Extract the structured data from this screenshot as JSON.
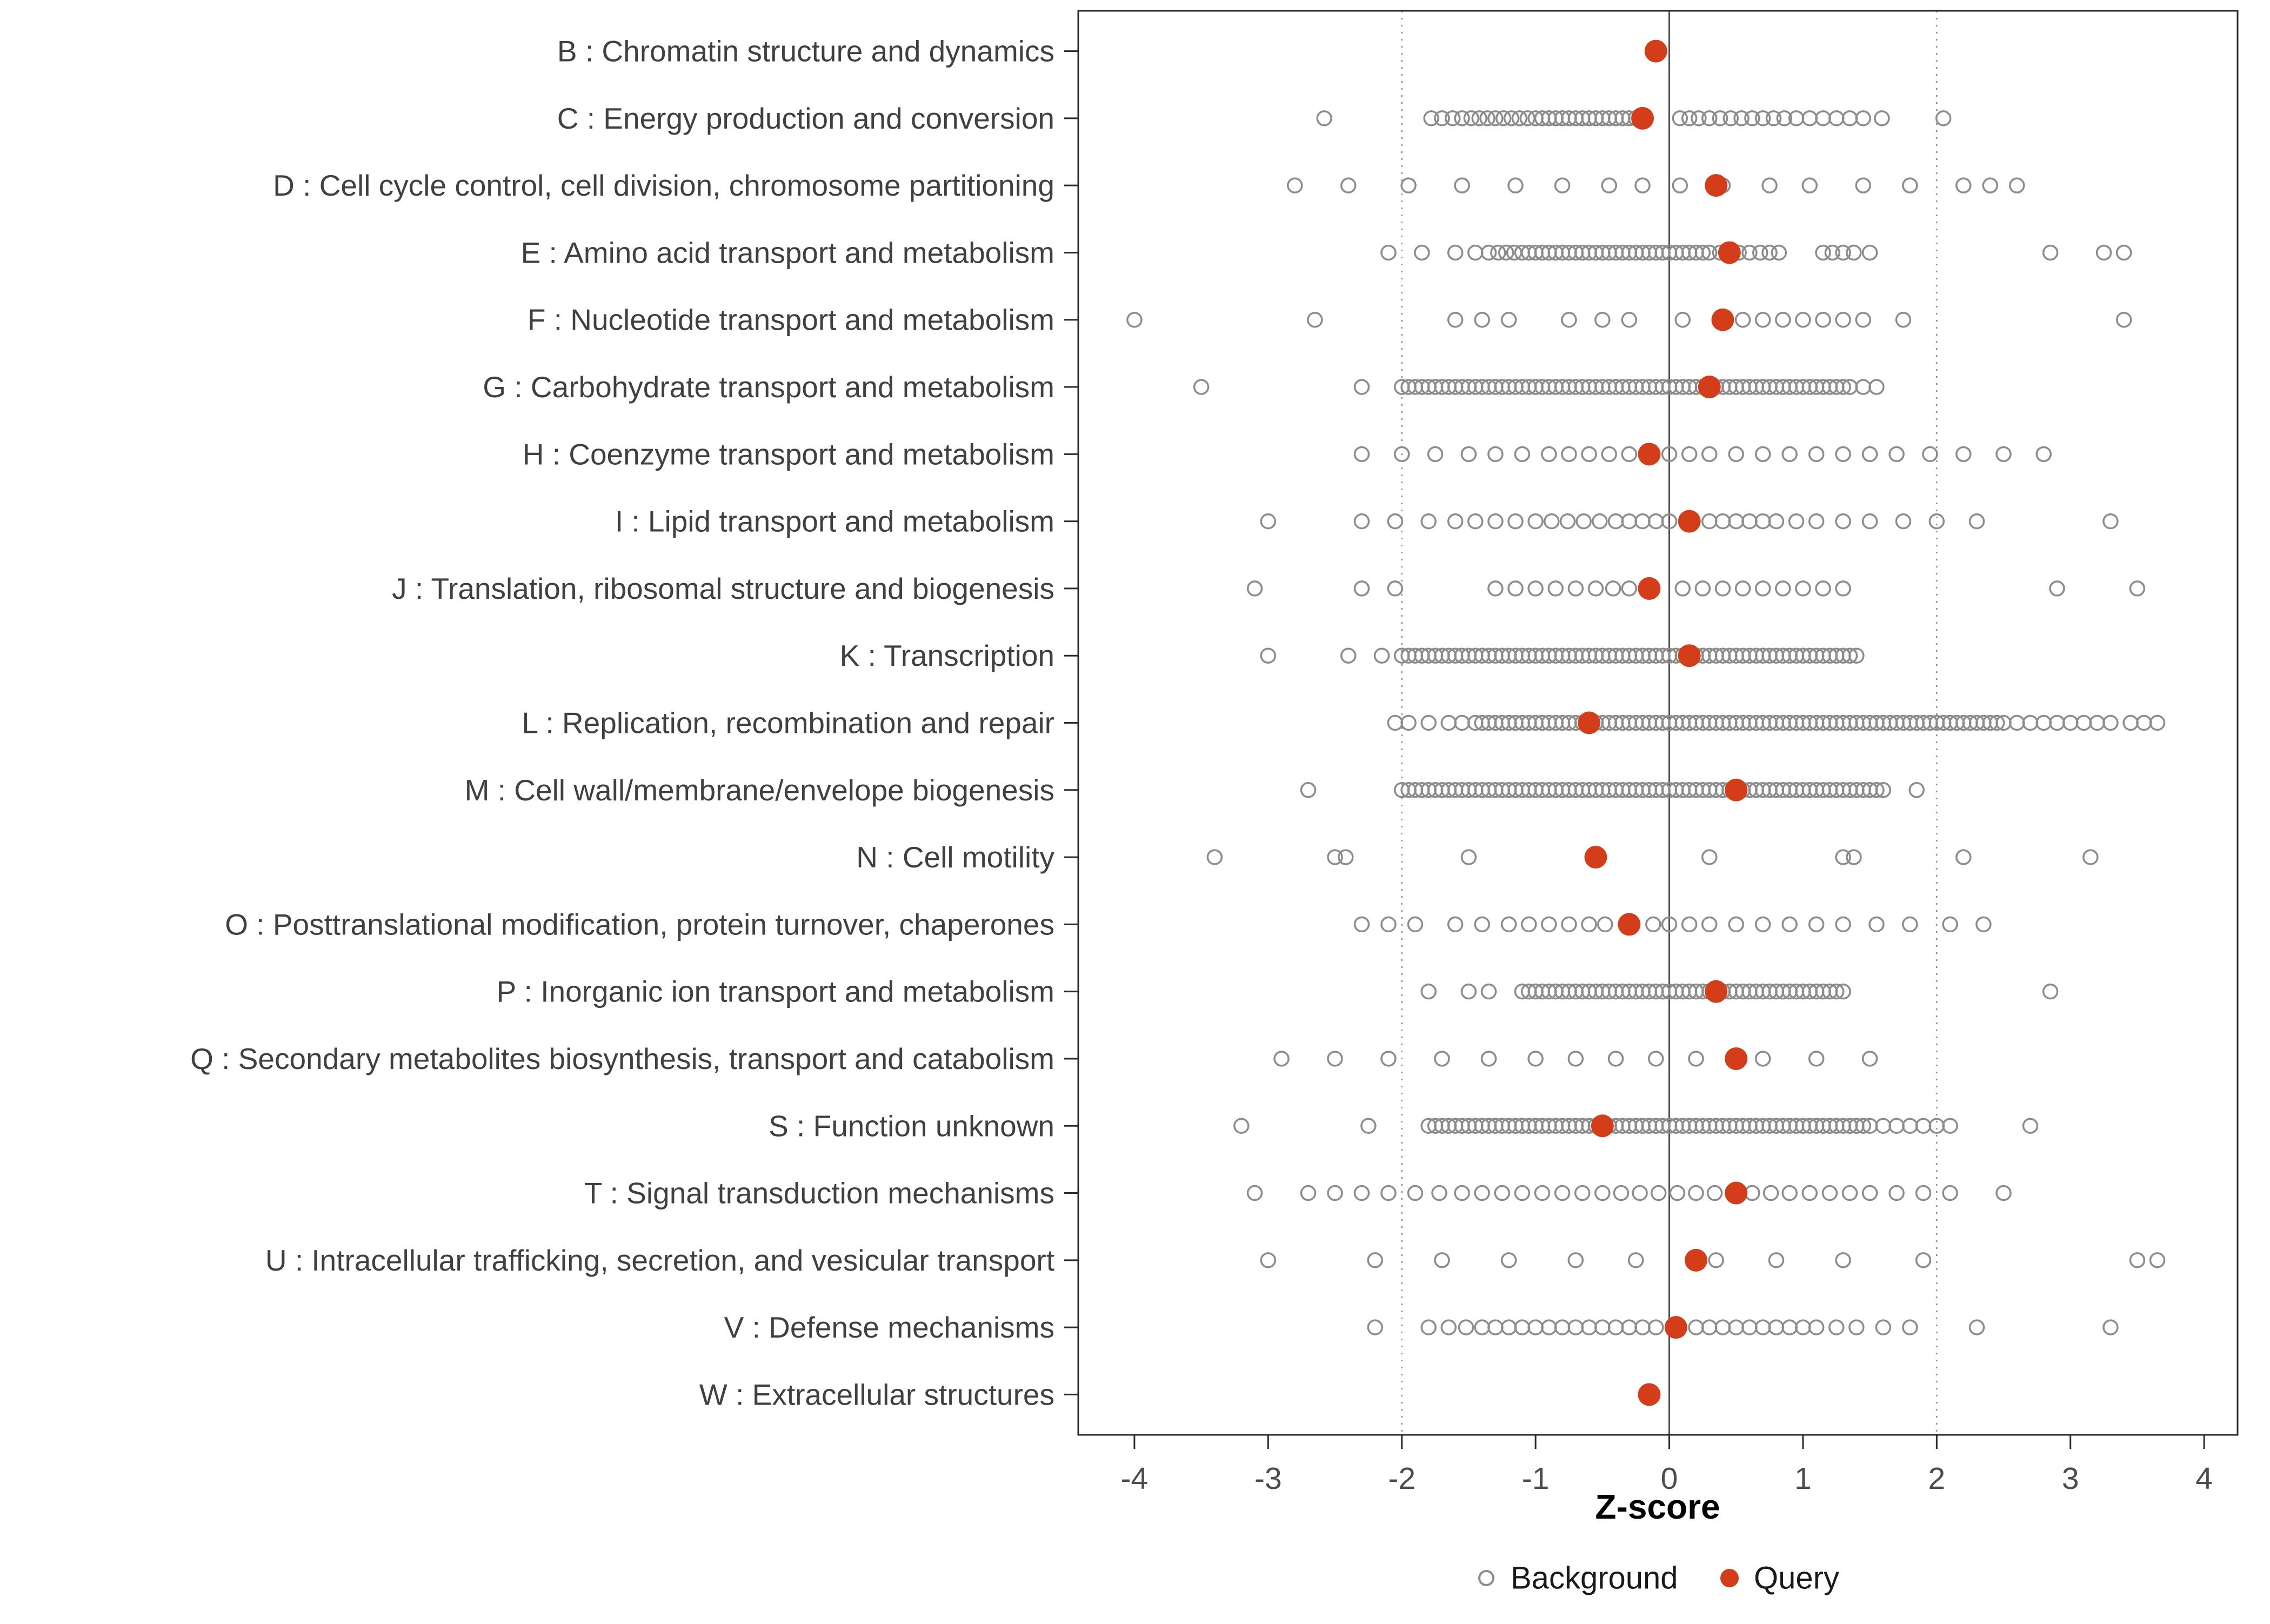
{
  "chart_data": {
    "type": "scatter",
    "variant": "strip-dotplot-by-category",
    "title": "",
    "xlabel": "Z-score",
    "xlim": [
      -4.42,
      4.25
    ],
    "x_ticks": [
      -4,
      -3,
      -2,
      -1,
      0,
      1,
      2,
      3,
      4
    ],
    "reference_lines": {
      "solid": [
        0
      ],
      "dotted": [
        -2,
        2
      ]
    },
    "grid": false,
    "legend_position": "bottom",
    "legend": [
      {
        "label": "Background",
        "marker": "open-circle",
        "color": "#8c8c8c"
      },
      {
        "label": "Query",
        "marker": "filled-circle",
        "color": "#d43d1a"
      }
    ],
    "colors": {
      "background_stroke": "#8c8c8c",
      "query_fill": "#d43d1a",
      "axis_text": "#4d4d4d",
      "panel_border": "#2b2b2b",
      "zero_line": "#4d4d4d",
      "dotted_line": "#8c8c8c"
    },
    "categories": [
      {
        "label": "B : Chromatin structure and dynamics",
        "query": -0.1,
        "background": []
      },
      {
        "label": "C : Energy production and conversion",
        "query": -0.2,
        "background": [
          -2.58,
          -1.78,
          -1.7,
          -1.62,
          -1.55,
          -1.48,
          -1.42,
          -1.36,
          -1.3,
          -1.24,
          -1.18,
          -1.12,
          -1.06,
          -1.0,
          -0.95,
          -0.9,
          -0.85,
          -0.8,
          -0.75,
          -0.7,
          -0.65,
          -0.6,
          -0.55,
          -0.5,
          -0.45,
          -0.4,
          -0.35,
          -0.3,
          -0.25,
          0.08,
          0.15,
          0.22,
          0.3,
          0.38,
          0.46,
          0.54,
          0.62,
          0.7,
          0.78,
          0.86,
          0.95,
          1.05,
          1.15,
          1.25,
          1.35,
          1.45,
          1.59,
          2.05
        ]
      },
      {
        "label": "D : Cell cycle control, cell division, chromosome partitioning",
        "query": 0.35,
        "background": [
          -2.8,
          -2.4,
          -1.95,
          -1.55,
          -1.15,
          -0.8,
          -0.45,
          -0.2,
          0.08,
          0.4,
          0.75,
          1.05,
          1.45,
          1.8,
          2.2,
          2.4,
          2.6
        ]
      },
      {
        "label": "E : Amino acid transport and metabolism",
        "query": 0.45,
        "background": [
          -2.1,
          -1.85,
          -1.6,
          -1.45,
          -1.35,
          -1.28,
          -1.22,
          -1.16,
          -1.1,
          -1.05,
          -1.0,
          -0.95,
          -0.9,
          -0.85,
          -0.8,
          -0.75,
          -0.7,
          -0.65,
          -0.6,
          -0.55,
          -0.5,
          -0.45,
          -0.4,
          -0.35,
          -0.3,
          -0.25,
          -0.2,
          -0.15,
          -0.1,
          -0.05,
          0.0,
          0.05,
          0.1,
          0.15,
          0.2,
          0.25,
          0.3,
          0.38,
          0.45,
          0.52,
          0.6,
          0.68,
          0.75,
          0.82,
          1.15,
          1.22,
          1.3,
          1.38,
          1.5,
          2.85,
          3.25,
          3.4
        ]
      },
      {
        "label": "F : Nucleotide transport and metabolism",
        "query": 0.4,
        "background": [
          -4.0,
          -2.65,
          -1.6,
          -1.4,
          -1.2,
          -0.75,
          -0.5,
          -0.3,
          0.1,
          0.55,
          0.7,
          0.85,
          1.0,
          1.15,
          1.3,
          1.45,
          1.75,
          3.4
        ]
      },
      {
        "label": "G : Carbohydrate transport and metabolism",
        "query": 0.3,
        "background": [
          -3.5,
          -2.3,
          -2.0,
          -1.95,
          -1.9,
          -1.85,
          -1.8,
          -1.75,
          -1.7,
          -1.65,
          -1.6,
          -1.55,
          -1.5,
          -1.45,
          -1.4,
          -1.35,
          -1.3,
          -1.25,
          -1.2,
          -1.15,
          -1.1,
          -1.05,
          -1.0,
          -0.95,
          -0.9,
          -0.85,
          -0.8,
          -0.75,
          -0.7,
          -0.65,
          -0.6,
          -0.55,
          -0.5,
          -0.45,
          -0.4,
          -0.35,
          -0.3,
          -0.25,
          -0.2,
          -0.15,
          -0.1,
          -0.05,
          0.0,
          0.05,
          0.1,
          0.15,
          0.2,
          0.25,
          0.3,
          0.35,
          0.4,
          0.45,
          0.5,
          0.55,
          0.6,
          0.65,
          0.7,
          0.75,
          0.8,
          0.85,
          0.9,
          0.95,
          1.0,
          1.05,
          1.1,
          1.15,
          1.2,
          1.25,
          1.3,
          1.35,
          1.45,
          1.55
        ]
      },
      {
        "label": "H : Coenzyme transport and metabolism",
        "query": -0.15,
        "background": [
          -2.3,
          -2.0,
          -1.75,
          -1.5,
          -1.3,
          -1.1,
          -0.9,
          -0.75,
          -0.6,
          -0.45,
          -0.3,
          0.0,
          0.15,
          0.3,
          0.5,
          0.7,
          0.9,
          1.1,
          1.3,
          1.5,
          1.7,
          1.95,
          2.2,
          2.5,
          2.8
        ]
      },
      {
        "label": "I : Lipid transport and metabolism",
        "query": 0.15,
        "background": [
          -3.0,
          -2.3,
          -2.05,
          -1.8,
          -1.6,
          -1.45,
          -1.3,
          -1.15,
          -1.0,
          -0.88,
          -0.76,
          -0.64,
          -0.52,
          -0.4,
          -0.3,
          -0.2,
          -0.1,
          0.0,
          0.3,
          0.4,
          0.5,
          0.6,
          0.7,
          0.8,
          0.95,
          1.1,
          1.3,
          1.5,
          1.75,
          2.0,
          2.3,
          3.3
        ]
      },
      {
        "label": "J : Translation, ribosomal structure and biogenesis",
        "query": -0.15,
        "background": [
          -3.1,
          -2.3,
          -2.05,
          -1.3,
          -1.15,
          -1.0,
          -0.85,
          -0.7,
          -0.55,
          -0.42,
          -0.3,
          0.1,
          0.25,
          0.4,
          0.55,
          0.7,
          0.85,
          1.0,
          1.15,
          1.3,
          2.9,
          3.5
        ]
      },
      {
        "label": "K : Transcription",
        "query": 0.15,
        "background": [
          -3.0,
          -2.4,
          -2.15,
          -2.0,
          -1.95,
          -1.9,
          -1.85,
          -1.8,
          -1.75,
          -1.7,
          -1.65,
          -1.6,
          -1.55,
          -1.5,
          -1.45,
          -1.4,
          -1.35,
          -1.3,
          -1.25,
          -1.2,
          -1.15,
          -1.1,
          -1.05,
          -1.0,
          -0.95,
          -0.9,
          -0.85,
          -0.8,
          -0.75,
          -0.7,
          -0.65,
          -0.6,
          -0.55,
          -0.5,
          -0.45,
          -0.4,
          -0.35,
          -0.3,
          -0.25,
          -0.2,
          -0.15,
          -0.1,
          -0.05,
          0.0,
          0.05,
          0.1,
          0.15,
          0.2,
          0.25,
          0.3,
          0.35,
          0.4,
          0.45,
          0.5,
          0.55,
          0.6,
          0.65,
          0.7,
          0.75,
          0.8,
          0.85,
          0.9,
          0.95,
          1.0,
          1.05,
          1.1,
          1.15,
          1.2,
          1.25,
          1.3,
          1.35,
          1.4
        ]
      },
      {
        "label": "L : Replication, recombination and repair",
        "query": -0.6,
        "background": [
          -2.05,
          -1.95,
          -1.8,
          -1.65,
          -1.55,
          -1.45,
          -1.4,
          -1.35,
          -1.3,
          -1.25,
          -1.2,
          -1.15,
          -1.1,
          -1.05,
          -1.0,
          -0.95,
          -0.9,
          -0.85,
          -0.8,
          -0.75,
          -0.7,
          -0.65,
          -0.6,
          -0.55,
          -0.5,
          -0.45,
          -0.4,
          -0.35,
          -0.3,
          -0.25,
          -0.2,
          -0.15,
          -0.1,
          -0.05,
          0.0,
          0.05,
          0.1,
          0.15,
          0.2,
          0.25,
          0.3,
          0.35,
          0.4,
          0.45,
          0.5,
          0.55,
          0.6,
          0.65,
          0.7,
          0.75,
          0.8,
          0.85,
          0.9,
          0.95,
          1.0,
          1.05,
          1.1,
          1.15,
          1.2,
          1.25,
          1.3,
          1.35,
          1.4,
          1.45,
          1.5,
          1.55,
          1.6,
          1.65,
          1.7,
          1.75,
          1.8,
          1.85,
          1.9,
          1.95,
          2.0,
          2.05,
          2.1,
          2.15,
          2.2,
          2.25,
          2.3,
          2.35,
          2.4,
          2.45,
          2.5,
          2.6,
          2.7,
          2.8,
          2.9,
          3.0,
          3.1,
          3.2,
          3.3,
          3.45,
          3.55,
          3.65
        ]
      },
      {
        "label": "M : Cell wall/membrane/envelope biogenesis",
        "query": 0.5,
        "background": [
          -2.7,
          -2.0,
          -1.95,
          -1.9,
          -1.85,
          -1.8,
          -1.75,
          -1.7,
          -1.65,
          -1.6,
          -1.55,
          -1.5,
          -1.45,
          -1.4,
          -1.35,
          -1.3,
          -1.25,
          -1.2,
          -1.15,
          -1.1,
          -1.05,
          -1.0,
          -0.95,
          -0.9,
          -0.85,
          -0.8,
          -0.75,
          -0.7,
          -0.65,
          -0.6,
          -0.55,
          -0.5,
          -0.45,
          -0.4,
          -0.35,
          -0.3,
          -0.25,
          -0.2,
          -0.15,
          -0.1,
          -0.05,
          0.0,
          0.05,
          0.1,
          0.15,
          0.2,
          0.25,
          0.3,
          0.35,
          0.4,
          0.45,
          0.55,
          0.6,
          0.65,
          0.7,
          0.75,
          0.8,
          0.85,
          0.9,
          0.95,
          1.0,
          1.05,
          1.1,
          1.15,
          1.2,
          1.25,
          1.3,
          1.35,
          1.4,
          1.45,
          1.5,
          1.55,
          1.6,
          1.85
        ]
      },
      {
        "label": "N : Cell motility",
        "query": -0.55,
        "background": [
          -3.4,
          -2.5,
          -2.42,
          -1.5,
          0.3,
          1.3,
          1.38,
          2.2,
          3.15
        ]
      },
      {
        "label": "O : Posttranslational modification, protein turnover, chaperones",
        "query": -0.3,
        "background": [
          -2.3,
          -2.1,
          -1.9,
          -1.6,
          -1.4,
          -1.2,
          -1.05,
          -0.9,
          -0.75,
          -0.6,
          -0.48,
          -0.12,
          0.0,
          0.15,
          0.3,
          0.5,
          0.7,
          0.9,
          1.1,
          1.3,
          1.55,
          1.8,
          2.1,
          2.35
        ]
      },
      {
        "label": "P : Inorganic ion transport and metabolism",
        "query": 0.35,
        "background": [
          -1.8,
          -1.5,
          -1.35,
          -1.1,
          -1.05,
          -1.0,
          -0.95,
          -0.9,
          -0.85,
          -0.8,
          -0.75,
          -0.7,
          -0.65,
          -0.6,
          -0.55,
          -0.5,
          -0.45,
          -0.4,
          -0.35,
          -0.3,
          -0.25,
          -0.2,
          -0.15,
          -0.1,
          -0.05,
          0.0,
          0.05,
          0.1,
          0.15,
          0.2,
          0.25,
          0.3,
          0.4,
          0.45,
          0.5,
          0.55,
          0.6,
          0.65,
          0.7,
          0.75,
          0.8,
          0.85,
          0.9,
          0.95,
          1.0,
          1.05,
          1.1,
          1.15,
          1.2,
          1.25,
          1.3,
          2.85
        ]
      },
      {
        "label": "Q : Secondary metabolites biosynthesis, transport and catabolism",
        "query": 0.5,
        "background": [
          -2.9,
          -2.5,
          -2.1,
          -1.7,
          -1.35,
          -1.0,
          -0.7,
          -0.4,
          -0.1,
          0.2,
          0.7,
          1.1,
          1.5
        ]
      },
      {
        "label": "S : Function unknown",
        "query": -0.5,
        "background": [
          -3.2,
          -2.25,
          -1.8,
          -1.75,
          -1.7,
          -1.65,
          -1.6,
          -1.55,
          -1.5,
          -1.45,
          -1.4,
          -1.35,
          -1.3,
          -1.25,
          -1.2,
          -1.15,
          -1.1,
          -1.05,
          -1.0,
          -0.95,
          -0.9,
          -0.85,
          -0.8,
          -0.75,
          -0.7,
          -0.65,
          -0.6,
          -0.55,
          -0.45,
          -0.4,
          -0.35,
          -0.3,
          -0.25,
          -0.2,
          -0.15,
          -0.1,
          -0.05,
          0.0,
          0.05,
          0.1,
          0.15,
          0.2,
          0.25,
          0.3,
          0.35,
          0.4,
          0.45,
          0.5,
          0.55,
          0.6,
          0.65,
          0.7,
          0.75,
          0.8,
          0.85,
          0.9,
          0.95,
          1.0,
          1.05,
          1.1,
          1.15,
          1.2,
          1.25,
          1.3,
          1.35,
          1.4,
          1.45,
          1.5,
          1.6,
          1.7,
          1.8,
          1.9,
          2.0,
          2.1,
          2.7
        ]
      },
      {
        "label": "T : Signal transduction mechanisms",
        "query": 0.5,
        "background": [
          -3.1,
          -2.7,
          -2.5,
          -2.3,
          -2.1,
          -1.9,
          -1.72,
          -1.55,
          -1.4,
          -1.25,
          -1.1,
          -0.95,
          -0.8,
          -0.65,
          -0.5,
          -0.36,
          -0.22,
          -0.08,
          0.06,
          0.2,
          0.34,
          0.62,
          0.76,
          0.9,
          1.05,
          1.2,
          1.35,
          1.5,
          1.7,
          1.9,
          2.1,
          2.5
        ]
      },
      {
        "label": "U : Intracellular trafficking, secretion, and vesicular transport",
        "query": 0.2,
        "background": [
          -3.0,
          -2.2,
          -1.7,
          -1.2,
          -0.7,
          -0.25,
          0.35,
          0.8,
          1.3,
          1.9,
          3.5,
          3.65
        ]
      },
      {
        "label": "V : Defense mechanisms",
        "query": 0.05,
        "background": [
          -2.2,
          -1.8,
          -1.65,
          -1.52,
          -1.4,
          -1.3,
          -1.2,
          -1.1,
          -1.0,
          -0.9,
          -0.8,
          -0.7,
          -0.6,
          -0.5,
          -0.4,
          -0.3,
          -0.2,
          -0.1,
          0.2,
          0.3,
          0.4,
          0.5,
          0.6,
          0.7,
          0.8,
          0.9,
          1.0,
          1.1,
          1.25,
          1.4,
          1.6,
          1.8,
          2.3,
          3.3
        ]
      },
      {
        "label": "W : Extracellular structures",
        "query": -0.15,
        "background": []
      }
    ]
  }
}
